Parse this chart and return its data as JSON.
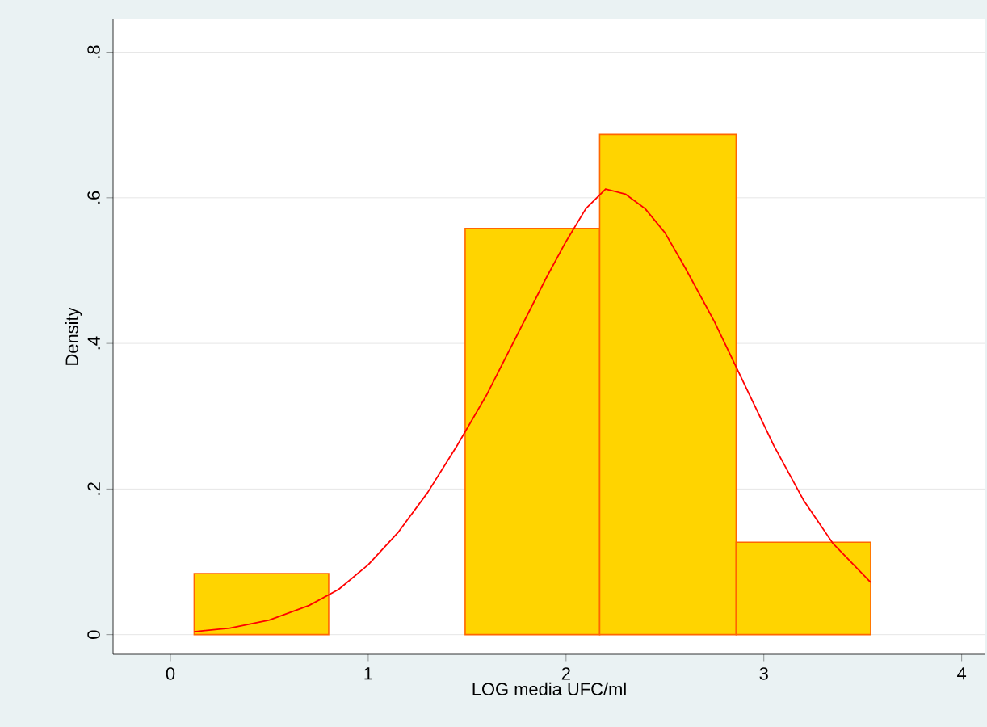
{
  "chart_data": {
    "type": "histogram",
    "xlabel": "LOG media UFC/ml",
    "ylabel": "Density",
    "series": [
      {
        "bins": [
          0.12,
          0.8,
          1.49,
          2.17,
          2.86,
          3.54
        ],
        "values": [
          0.084,
          0,
          0.558,
          0.687,
          0.127
        ],
        "color": "#ffd400"
      },
      {
        "type": "line",
        "color": "#ff0000",
        "x": [
          0.12,
          0.3,
          0.5,
          0.7,
          0.85,
          1.0,
          1.15,
          1.3,
          1.45,
          1.6,
          1.75,
          1.9,
          2.0,
          2.1,
          2.2,
          2.3,
          2.4,
          2.5,
          2.6,
          2.75,
          2.9,
          3.05,
          3.2,
          3.35,
          3.54
        ],
        "values": [
          0.004,
          0.009,
          0.02,
          0.04,
          0.062,
          0.096,
          0.14,
          0.195,
          0.26,
          0.33,
          0.41,
          0.49,
          0.54,
          0.585,
          0.612,
          0.605,
          0.585,
          0.552,
          0.505,
          0.43,
          0.345,
          0.26,
          0.185,
          0.125,
          0.072
        ]
      }
    ],
    "xlim": [
      -0.29,
      4.12
    ],
    "ylim": [
      -0.027,
      0.845
    ],
    "xticks": [
      0,
      1,
      2,
      3,
      4
    ],
    "yticks": [
      0,
      {
        "value": 0.2,
        "label": ".2"
      },
      {
        "value": 0.4,
        "label": ".4"
      },
      {
        "value": 0.6,
        "label": ".6"
      },
      {
        "value": 0.8,
        "label": ".8"
      }
    ],
    "grid": "y"
  }
}
